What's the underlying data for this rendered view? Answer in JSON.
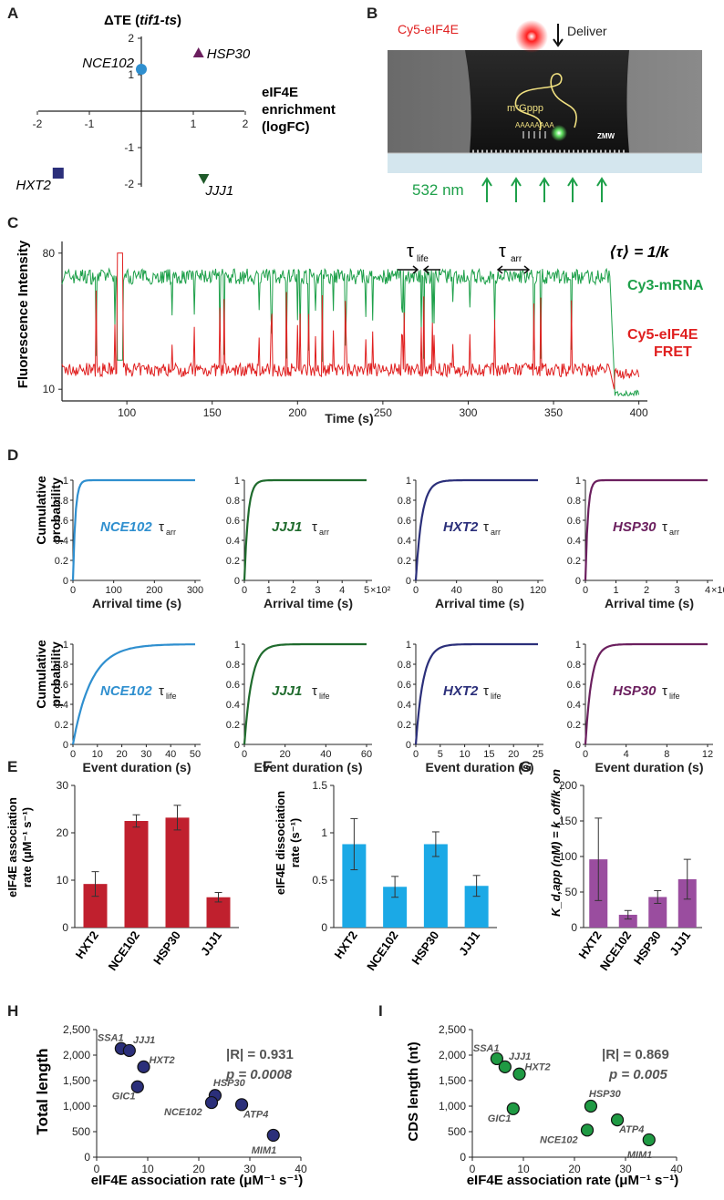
{
  "panels": {
    "A": {
      "label": "A",
      "y_axis_title": "ΔTE (",
      "y_axis_gene": "tif1-ts",
      "y_axis_close": ")",
      "x_axis_title_lines": [
        "eIF4E",
        "enrichment",
        "(logFC)"
      ],
      "x_ticks": [
        "-2",
        "-1",
        "1",
        "2"
      ],
      "y_ticks": [
        "2",
        "1",
        "-1",
        "-2"
      ],
      "points": [
        {
          "name": "NCE102",
          "x": 0.0,
          "y": 1.15,
          "shape": "circle",
          "color": "#2f8fcf"
        },
        {
          "name": "HSP30",
          "x": 1.1,
          "y": 1.6,
          "shape": "triangle-up",
          "color": "#6b1f5e"
        },
        {
          "name": "HXT2",
          "x": -1.6,
          "y": -1.7,
          "shape": "square",
          "color": "#2b2f7a"
        },
        {
          "name": "JJJ1",
          "x": 1.2,
          "y": -1.85,
          "shape": "triangle-down",
          "color": "#1f5a2a"
        }
      ]
    },
    "B": {
      "label": "B",
      "dye_label": "Cy5-eIF4E",
      "deliver_label": "Deliver",
      "cap_label": "m⁷Gppp",
      "polya_label": "AAAAAAAA",
      "well_label": "ZMW",
      "laser_label": "532 nm"
    },
    "C": {
      "label": "C",
      "y_axis_title": "Fluorescence Intensity",
      "x_axis_title": "Time (s)",
      "x_ticks": [
        "100",
        "150",
        "200",
        "250",
        "300",
        "350",
        "400"
      ],
      "y_ticks": [
        "80",
        "10"
      ],
      "tau_life": "τ",
      "tau_life_sub": "life",
      "tau_arr": "τ",
      "tau_arr_sub": "arr",
      "rate_formula": "⟨τ⟩ = 1/k",
      "series": [
        {
          "name": "Cy3-mRNA",
          "color": "#1ea04a"
        },
        {
          "name": "Cy5-eIF4E",
          "name2": "FRET",
          "color": "#e02020"
        }
      ]
    },
    "D": {
      "label": "D",
      "y_axis_lines": [
        "Cumulative",
        "probability"
      ],
      "cdf_y_ticks": [
        "1",
        "0.8",
        "0.6",
        "0.4",
        "0.2",
        "0"
      ],
      "arrival_title": "Arrival time (s)",
      "duration_title": "Event duration (s)",
      "tau_symbol": "τ",
      "arr_sub": "arr",
      "life_sub": "life",
      "genes": [
        {
          "name": "NCE102",
          "color": "#2f8fcf",
          "arr_ticks": [
            "0",
            "100",
            "200",
            "300"
          ],
          "arr_exp": "",
          "life_ticks": [
            "0",
            "10",
            "20",
            "30",
            "40",
            "50"
          ]
        },
        {
          "name": "JJJ1",
          "color": "#1f6b2d",
          "arr_ticks": [
            "0",
            "1",
            "2",
            "3",
            "4",
            "5"
          ],
          "arr_exp": "×10²",
          "life_ticks": [
            "0",
            "20",
            "40",
            "60"
          ]
        },
        {
          "name": "HXT2",
          "color": "#2b2f7a",
          "arr_ticks": [
            "0",
            "40",
            "80",
            "120"
          ],
          "arr_exp": "",
          "life_ticks": [
            "0",
            "5",
            "10",
            "15",
            "20",
            "25"
          ]
        },
        {
          "name": "HSP30",
          "color": "#6b1f5e",
          "arr_ticks": [
            "0",
            "1",
            "2",
            "3",
            "4"
          ],
          "arr_exp": "×10²",
          "life_ticks": [
            "0",
            "4",
            "8",
            "12"
          ]
        }
      ]
    },
    "E": {
      "label": "E",
      "y_axis_lines": [
        "eIF4E association",
        "rate (μM⁻¹ s⁻¹)"
      ],
      "y_ticks": [
        "30",
        "20",
        "10",
        "0"
      ]
    },
    "F": {
      "label": "F",
      "y_axis_lines": [
        "eIF4E dissociation",
        "rate (s⁻¹)"
      ],
      "y_ticks": [
        "1.5",
        "1",
        "0.5",
        "0"
      ]
    },
    "G": {
      "label": "G",
      "y_axis_title": "K_d,app (nM) = k_off/k_on",
      "y_ticks": [
        "200",
        "150",
        "100",
        "50",
        "0"
      ]
    },
    "H": {
      "label": "H",
      "y_axis_title": "Total length",
      "x_axis_title": "eIF4E association rate (μM⁻¹ s⁻¹)",
      "x_ticks": [
        "0",
        "10",
        "20",
        "30",
        "40"
      ],
      "y_ticks": [
        "2,500",
        "2,000",
        "1,500",
        "1,000",
        "500",
        "0"
      ],
      "stat_r": "|R| = 0.931",
      "stat_p": "p = 0.0008"
    },
    "I": {
      "label": "I",
      "y_axis_title": "CDS length (nt)",
      "x_axis_title": "eIF4E association rate (μM⁻¹ s⁻¹)",
      "x_ticks": [
        "0",
        "10",
        "20",
        "30",
        "40"
      ],
      "y_ticks": [
        "2,500",
        "2,000",
        "1,500",
        "1,000",
        "500",
        "0"
      ],
      "stat_r": "|R| = 0.869",
      "stat_p": "p = 0.005"
    }
  },
  "chart_data": [
    {
      "type": "bar",
      "panel": "E",
      "categories": [
        "HXT2",
        "NCE102",
        "HSP30",
        "JJJ1"
      ],
      "values": [
        9.2,
        22.5,
        23.2,
        6.4
      ],
      "errors": [
        2.6,
        1.3,
        2.6,
        1.0
      ],
      "ylim": [
        0,
        30
      ],
      "color": "#c0202e"
    },
    {
      "type": "bar",
      "panel": "F",
      "categories": [
        "HXT2",
        "NCE102",
        "HSP30",
        "JJJ1"
      ],
      "values": [
        0.88,
        0.43,
        0.88,
        0.44
      ],
      "errors": [
        0.27,
        0.11,
        0.13,
        0.11
      ],
      "ylim": [
        0,
        1.5
      ],
      "color": "#1ba9e6"
    },
    {
      "type": "bar",
      "panel": "G",
      "categories": [
        "HXT2",
        "NCE102",
        "HSP30",
        "JJJ1"
      ],
      "values": [
        96,
        18,
        43,
        68
      ],
      "errors": [
        58,
        6,
        9,
        28
      ],
      "ylim": [
        0,
        200
      ],
      "color": "#9a4d9f"
    },
    {
      "type": "scatter",
      "panel": "H",
      "xlim": [
        0,
        40
      ],
      "ylim": [
        0,
        2500
      ],
      "color": "#2b2f7a",
      "points": [
        {
          "label": "SSA1",
          "x": 4.8,
          "y": 2130
        },
        {
          "label": "JJJ1",
          "x": 6.4,
          "y": 2090
        },
        {
          "label": "HXT2",
          "x": 9.2,
          "y": 1770
        },
        {
          "label": "GIC1",
          "x": 8.0,
          "y": 1380
        },
        {
          "label": "HSP30",
          "x": 23.2,
          "y": 1210
        },
        {
          "label": "NCE102",
          "x": 22.5,
          "y": 1070
        },
        {
          "label": "ATP4",
          "x": 28.4,
          "y": 1030
        },
        {
          "label": "MIM1",
          "x": 34.6,
          "y": 430
        }
      ]
    },
    {
      "type": "scatter",
      "panel": "I",
      "xlim": [
        0,
        40
      ],
      "ylim": [
        0,
        2500
      ],
      "color": "#1f9a43",
      "points": [
        {
          "label": "SSA1",
          "x": 4.8,
          "y": 1930
        },
        {
          "label": "JJJ1",
          "x": 6.4,
          "y": 1770
        },
        {
          "label": "HXT2",
          "x": 9.2,
          "y": 1630
        },
        {
          "label": "GIC1",
          "x": 8.0,
          "y": 950
        },
        {
          "label": "HSP30",
          "x": 23.2,
          "y": 1000
        },
        {
          "label": "NCE102",
          "x": 22.5,
          "y": 530
        },
        {
          "label": "ATP4",
          "x": 28.4,
          "y": 730
        },
        {
          "label": "MIM1",
          "x": 34.6,
          "y": 340
        }
      ]
    }
  ]
}
